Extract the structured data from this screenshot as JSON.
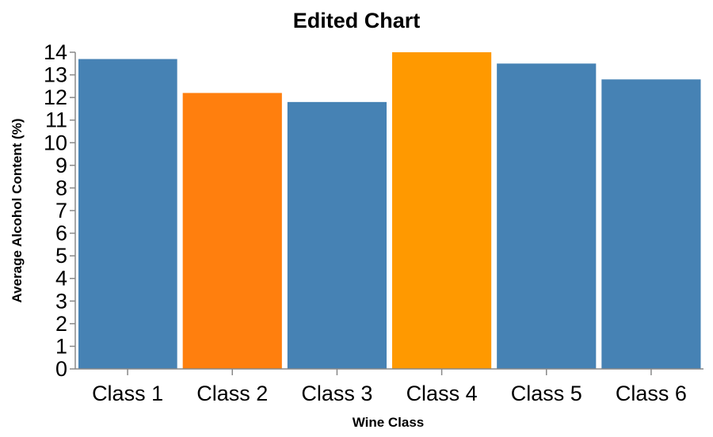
{
  "chart_data": {
    "type": "bar",
    "title": "Edited Chart",
    "xlabel": "Wine Class",
    "ylabel": "Average Alcohol Content (%)",
    "categories": [
      "Class 1",
      "Class 2",
      "Class 3",
      "Class 4",
      "Class 5",
      "Class 6"
    ],
    "values": [
      13.7,
      12.2,
      11.8,
      14.0,
      13.5,
      12.8
    ],
    "colors": [
      "#4682b4",
      "#ff7f0e",
      "#4682b4",
      "#ff9900",
      "#4682b4",
      "#4682b4"
    ],
    "ylim": [
      0,
      14
    ],
    "yticks": [
      "0",
      "1",
      "2",
      "3",
      "4",
      "5",
      "6",
      "7",
      "8",
      "9",
      "10",
      "11",
      "12",
      "13",
      "14"
    ],
    "grid": false,
    "legend": "none"
  }
}
